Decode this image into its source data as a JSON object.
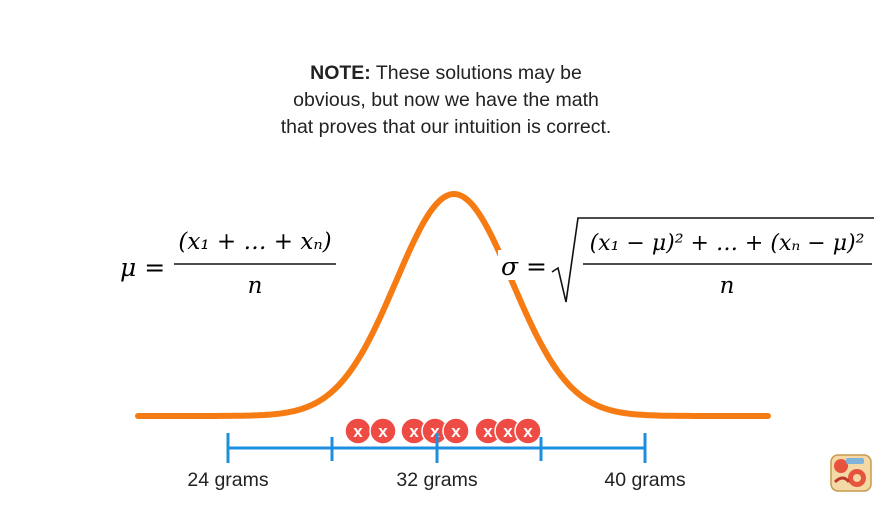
{
  "note": {
    "bold": "NOTE:",
    "line1": "These solutions may be",
    "line2": "obvious, but now we have the math",
    "line3": "that proves that our intuition is correct."
  },
  "mean_formula": {
    "lhs": "μ =",
    "numerator": "(x₁ + … + xₙ)",
    "denominator": "n"
  },
  "sd_formula": {
    "lhs": "σ =",
    "numerator": "(x₁ − μ)² + … + (xₙ − μ)²",
    "denominator": "n"
  },
  "axis": {
    "ticks": [
      {
        "label": "24 grams"
      },
      {
        "label": "32 grams"
      },
      {
        "label": "40 grams"
      }
    ]
  },
  "data_points": {
    "marker": "x",
    "count": 10
  },
  "colors": {
    "curve": "#F57B12",
    "axis": "#1E8FE0",
    "marker": "#EF4B45",
    "text": "#222222"
  },
  "logo": {
    "icon": "logo-icon"
  }
}
